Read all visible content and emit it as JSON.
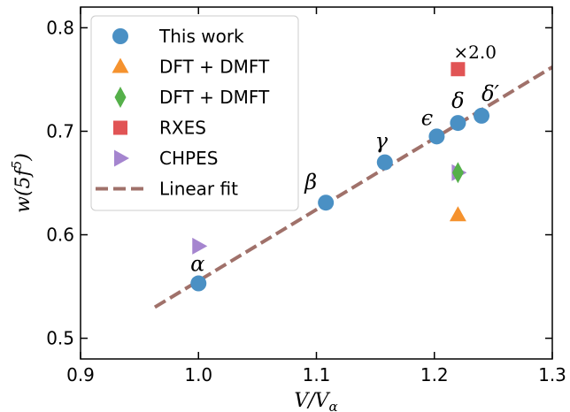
{
  "chart_data": {
    "type": "scatter",
    "title": "",
    "xlabel": "V/V_α",
    "ylabel": "w(5f^5)",
    "xlim": [
      0.9,
      1.3
    ],
    "ylim": [
      0.48,
      0.82
    ],
    "xticks": [
      "0.9",
      "1.0",
      "1.1",
      "1.2",
      "1.3"
    ],
    "yticks": [
      "0.5",
      "0.6",
      "0.7",
      "0.8"
    ],
    "grid": false,
    "legend_position": "top-left",
    "series": [
      {
        "name": "This work",
        "marker": "circle",
        "color": "#4a90c4",
        "points": [
          {
            "x": 1.0,
            "y": 0.553
          },
          {
            "x": 1.108,
            "y": 0.631
          },
          {
            "x": 1.158,
            "y": 0.67
          },
          {
            "x": 1.202,
            "y": 0.695
          },
          {
            "x": 1.22,
            "y": 0.708
          },
          {
            "x": 1.24,
            "y": 0.715
          }
        ]
      },
      {
        "name": "DFT + DMFT",
        "marker": "triangle-up",
        "color": "#f5922e",
        "points": [
          {
            "x": 1.22,
            "y": 0.619
          }
        ]
      },
      {
        "name": "DFT + DMFT",
        "marker": "diamond",
        "color": "#55b04a",
        "points": [
          {
            "x": 1.22,
            "y": 0.66
          }
        ]
      },
      {
        "name": "RXES",
        "marker": "square",
        "color": "#e15455",
        "points": [
          {
            "x": 1.22,
            "y": 0.76
          }
        ]
      },
      {
        "name": "CHPES",
        "marker": "triangle-right",
        "color": "#a585cf",
        "points": [
          {
            "x": 1.0,
            "y": 0.589
          },
          {
            "x": 1.22,
            "y": 0.66
          }
        ]
      },
      {
        "name": "Linear fit",
        "marker": "dashed-line",
        "color": "#a0716a",
        "points": [
          {
            "x": 0.963,
            "y": 0.53
          },
          {
            "x": 1.3,
            "y": 0.762
          }
        ]
      }
    ],
    "phase_labels": [
      {
        "text": "α",
        "x": 1.0,
        "y": 0.553
      },
      {
        "text": "β",
        "x": 1.108,
        "y": 0.631
      },
      {
        "text": "γ",
        "x": 1.158,
        "y": 0.67
      },
      {
        "text": "ϵ",
        "x": 1.202,
        "y": 0.695
      },
      {
        "text": "δ",
        "x": 1.22,
        "y": 0.708
      },
      {
        "text": "δ′",
        "x": 1.24,
        "y": 0.715
      }
    ],
    "annotations": [
      {
        "text": "×2.0",
        "x": 1.22,
        "y": 0.76
      }
    ]
  }
}
